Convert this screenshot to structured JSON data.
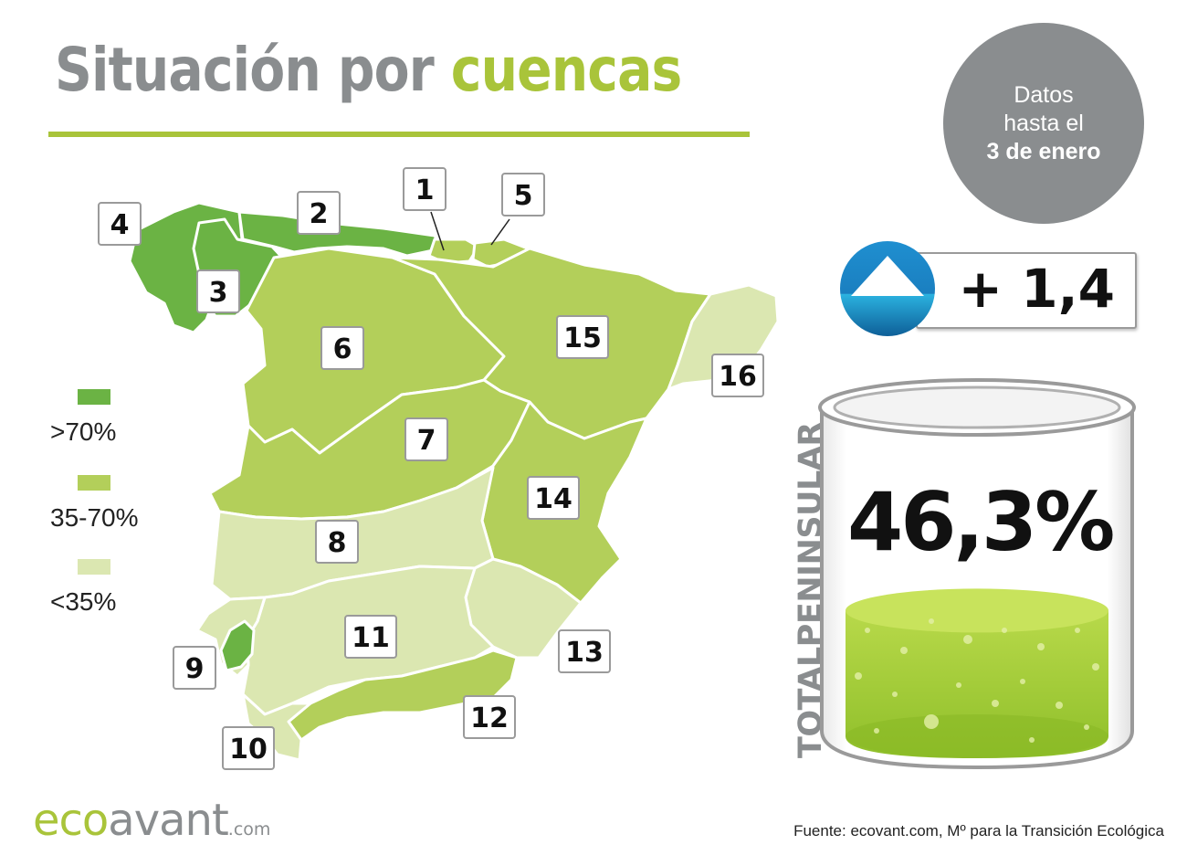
{
  "title": {
    "part1": "Situación por",
    "part2": "cuencas"
  },
  "date_badge": {
    "line1": "Datos",
    "line2": "hasta el",
    "line3": "3 de enero"
  },
  "colors": {
    "high": "#6bb344",
    "mid": "#b3cf5a",
    "low": "#dbe7b1",
    "accent": "#a9c43a",
    "gray": "#8a8d8f"
  },
  "legend": [
    {
      "label": ">70%",
      "color": "#6bb344"
    },
    {
      "label": "35-70%",
      "color": "#b3cf5a"
    },
    {
      "label": "<35%",
      "color": "#dbe7b1"
    }
  ],
  "basins": [
    {
      "label": "1",
      "level": "mid"
    },
    {
      "label": "2",
      "level": "high"
    },
    {
      "label": "3",
      "level": "high"
    },
    {
      "label": "4",
      "level": "high"
    },
    {
      "label": "5",
      "level": "mid"
    },
    {
      "label": "6",
      "level": "mid"
    },
    {
      "label": "7",
      "level": "mid"
    },
    {
      "label": "8",
      "level": "low"
    },
    {
      "label": "9",
      "level": "high"
    },
    {
      "label": "10",
      "level": "low"
    },
    {
      "label": "11",
      "level": "low"
    },
    {
      "label": "12",
      "level": "mid"
    },
    {
      "label": "13",
      "level": "low"
    },
    {
      "label": "14",
      "level": "mid"
    },
    {
      "label": "15",
      "level": "mid"
    },
    {
      "label": "16",
      "level": "low"
    }
  ],
  "variation": {
    "value": "+ 1,4",
    "icon": "up-arrow-icon"
  },
  "total": {
    "label": "TOTALPENINSULAR",
    "value": "46,3%",
    "fill_fraction": 0.463
  },
  "logo": {
    "part1": "eco",
    "part2": "avant",
    "part3": ".com"
  },
  "source": "Fuente: ecovant.com, Mº para la Transición Ecológica"
}
